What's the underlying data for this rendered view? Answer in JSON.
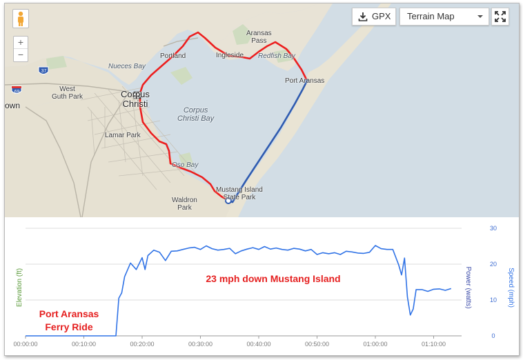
{
  "map": {
    "labels": {
      "corpus_christi": "Corpus\nChristi",
      "corpus_christi_bay": "Corpus\nChristi Bay",
      "nueces_bay": "Nueces Bay",
      "portland": "Portland",
      "ingleside": "Ingleside",
      "aransas_pass": "Aransas\nPass",
      "redfish_bay": "Redfish Bay",
      "port_aransas": "Port Aransas",
      "west_guth_park": "West\nGuth Park",
      "lamar_park": "Lamar Park",
      "oso_bay": "Oso Bay",
      "waldron_park": "Waldron\nPark",
      "mustang_island_state_park": "Mustang Island\nState Park",
      "town_cut": "own",
      "highway_37": "37",
      "highway_69": "69"
    },
    "controls": {
      "zoom_in": "+",
      "zoom_out": "−",
      "gpx_label": "GPX",
      "map_type": "Terrain Map"
    }
  },
  "chart_data": {
    "type": "line",
    "x_tick_labels": [
      "00:00:00",
      "00:10:00",
      "00:20:00",
      "00:30:00",
      "00:40:00",
      "00:50:00",
      "01:00:00",
      "01:10:00"
    ],
    "left_axis_label": "Elevation (ft)",
    "right_axis_label_1": "Power (watts)",
    "right_axis_label_2": "Speed (mph)",
    "right_axis_ticks": [
      "30",
      "20",
      "10",
      "0"
    ],
    "ylim": [
      0,
      30
    ],
    "grid": true,
    "series": [
      {
        "name": "Speed (mph)",
        "color": "#2f72e6",
        "x_minutes": [
          0,
          15.5,
          16,
          16.5,
          17,
          18,
          19,
          20,
          20.5,
          21,
          22,
          23,
          24,
          25,
          26,
          27,
          28,
          29,
          30,
          31,
          32,
          33,
          34,
          35,
          36,
          37,
          38,
          39,
          40,
          41,
          42,
          43,
          44,
          45,
          46,
          47,
          48,
          49,
          50,
          51,
          52,
          53,
          54,
          55,
          56,
          57,
          58,
          59,
          60,
          61,
          62,
          63,
          64,
          64.5,
          65,
          65.5,
          66,
          66.5,
          67,
          68,
          69,
          70,
          71,
          72,
          73
        ],
        "values": [
          0,
          0,
          10.5,
          12,
          16.5,
          20.3,
          18.5,
          21.8,
          18.5,
          22.4,
          23.9,
          23.3,
          21,
          23.6,
          23.7,
          24.1,
          24.5,
          24.7,
          24.1,
          25.1,
          24.3,
          23.9,
          24.1,
          24.4,
          22.9,
          23.7,
          24.2,
          24.6,
          24.1,
          24.9,
          24.2,
          24.5,
          24.1,
          23.9,
          24.4,
          24.2,
          23.7,
          24.1,
          22.7,
          23.2,
          22.9,
          23.2,
          22.7,
          23.6,
          23.4,
          23.1,
          23,
          23.3,
          25.2,
          24.3,
          24.1,
          24.1,
          19.8,
          17,
          21.7,
          10.8,
          5.8,
          7.5,
          12.9,
          12.9,
          12.4,
          13,
          13.1,
          12.7,
          13.2
        ]
      }
    ],
    "annotations": [
      {
        "text": "23 mph down Mustang Island",
        "color": "#e51f1f"
      },
      {
        "text": "Port Aransas\nFerry Ride",
        "color": "#e51f1f"
      }
    ]
  }
}
